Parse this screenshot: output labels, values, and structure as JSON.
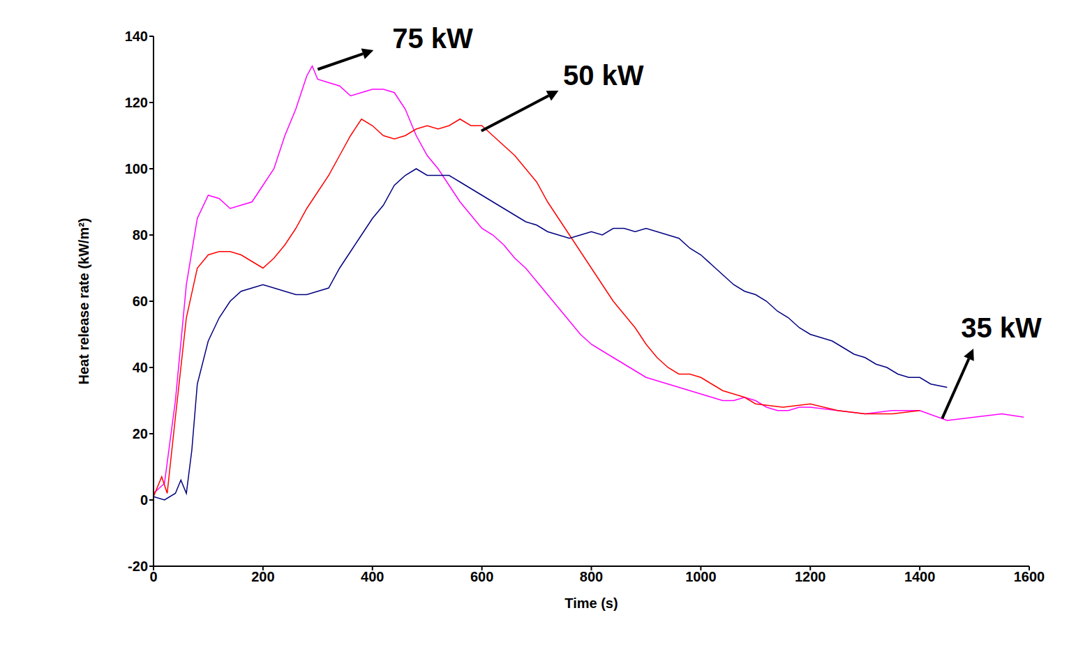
{
  "chart_data": {
    "type": "line",
    "x_label": "Time (s)",
    "y_label": "Heat release rate (kW/m²)",
    "xlim": [
      0,
      1600
    ],
    "xticks": [
      0,
      200,
      400,
      600,
      800,
      1000,
      1200,
      1400,
      1600
    ],
    "ylim": [
      -20,
      140
    ],
    "yticks": [
      -20,
      0,
      20,
      40,
      60,
      80,
      100,
      120,
      140
    ],
    "grid": false,
    "series": [
      {
        "name": "75 kW",
        "color": "#ff00ff",
        "x": [
          0,
          20,
          40,
          60,
          80,
          100,
          120,
          140,
          160,
          180,
          200,
          220,
          240,
          260,
          280,
          290,
          300,
          320,
          340,
          360,
          380,
          400,
          420,
          440,
          460,
          480,
          500,
          520,
          540,
          560,
          580,
          600,
          620,
          640,
          660,
          680,
          700,
          720,
          740,
          760,
          780,
          800,
          820,
          840,
          860,
          880,
          900,
          920,
          940,
          960,
          980,
          1000,
          1020,
          1040,
          1060,
          1080,
          1100,
          1120,
          1140,
          1160,
          1180,
          1200,
          1250,
          1300,
          1350,
          1400,
          1450,
          1500,
          1550,
          1590
        ],
        "values": [
          2,
          5,
          30,
          65,
          85,
          92,
          91,
          88,
          89,
          90,
          95,
          100,
          110,
          118,
          128,
          131,
          127,
          126,
          125,
          122,
          123,
          124,
          124,
          123,
          118,
          110,
          104,
          100,
          95,
          90,
          86,
          82,
          80,
          77,
          73,
          70,
          66,
          62,
          58,
          54,
          50,
          47,
          45,
          43,
          41,
          39,
          37,
          36,
          35,
          34,
          33,
          32,
          31,
          30,
          30,
          31,
          30,
          28,
          27,
          27,
          28,
          28,
          27,
          26,
          27,
          27,
          24,
          25,
          26,
          25
        ]
      },
      {
        "name": "50 kW",
        "color": "#ff0000",
        "x": [
          0,
          15,
          25,
          40,
          60,
          80,
          100,
          120,
          140,
          160,
          180,
          200,
          220,
          240,
          260,
          280,
          300,
          320,
          340,
          360,
          380,
          400,
          420,
          440,
          460,
          480,
          500,
          520,
          540,
          560,
          580,
          600,
          620,
          640,
          660,
          680,
          700,
          720,
          740,
          760,
          780,
          800,
          820,
          840,
          860,
          880,
          900,
          920,
          940,
          960,
          980,
          1000,
          1020,
          1040,
          1060,
          1080,
          1100,
          1150,
          1200,
          1250,
          1300,
          1350,
          1400
        ],
        "values": [
          1,
          7,
          2,
          25,
          55,
          70,
          74,
          75,
          75,
          74,
          72,
          70,
          73,
          77,
          82,
          88,
          93,
          98,
          104,
          110,
          115,
          113,
          110,
          109,
          110,
          112,
          113,
          112,
          113,
          115,
          113,
          113,
          110,
          107,
          104,
          100,
          96,
          90,
          85,
          80,
          75,
          70,
          65,
          60,
          56,
          52,
          47,
          43,
          40,
          38,
          38,
          37,
          35,
          33,
          32,
          31,
          29,
          28,
          29,
          27,
          26,
          26,
          27
        ]
      },
      {
        "name": "35 kW",
        "color": "#000080",
        "x": [
          0,
          20,
          40,
          50,
          60,
          70,
          80,
          100,
          120,
          140,
          160,
          180,
          200,
          220,
          240,
          260,
          280,
          300,
          320,
          340,
          360,
          380,
          400,
          420,
          440,
          460,
          480,
          500,
          520,
          540,
          560,
          580,
          600,
          620,
          640,
          660,
          680,
          700,
          720,
          740,
          760,
          780,
          800,
          820,
          840,
          860,
          880,
          900,
          920,
          940,
          960,
          980,
          1000,
          1020,
          1040,
          1060,
          1080,
          1100,
          1120,
          1140,
          1160,
          1180,
          1200,
          1220,
          1240,
          1260,
          1280,
          1300,
          1320,
          1340,
          1360,
          1380,
          1400,
          1420,
          1450
        ],
        "values": [
          1,
          0,
          2,
          6,
          2,
          15,
          35,
          48,
          55,
          60,
          63,
          64,
          65,
          64,
          63,
          62,
          62,
          63,
          64,
          70,
          75,
          80,
          85,
          89,
          95,
          98,
          100,
          98,
          98,
          98,
          96,
          94,
          92,
          90,
          88,
          86,
          84,
          83,
          81,
          80,
          79,
          80,
          81,
          80,
          82,
          82,
          81,
          82,
          81,
          80,
          79,
          76,
          74,
          71,
          68,
          65,
          63,
          62,
          60,
          57,
          55,
          52,
          50,
          49,
          48,
          46,
          44,
          43,
          41,
          40,
          38,
          37,
          37,
          35,
          34
        ]
      }
    ],
    "annotations": [
      {
        "text": "75 kW",
        "x": 300,
        "y": 130,
        "arrow_x": 402,
        "arrow_y": 135.8,
        "text_x": 510,
        "text_y": 139.4
      },
      {
        "text": "50 kW",
        "x": 599,
        "y": 111.4,
        "arrow_x": 740,
        "arrow_y": 123.6,
        "text_x": 822,
        "text_y": 128.2
      },
      {
        "text": "35 kW",
        "x": 1441,
        "y": 24.6,
        "arrow_x": 1498,
        "arrow_y": 45.7,
        "text_x": 1549,
        "text_y": 52
      }
    ]
  }
}
